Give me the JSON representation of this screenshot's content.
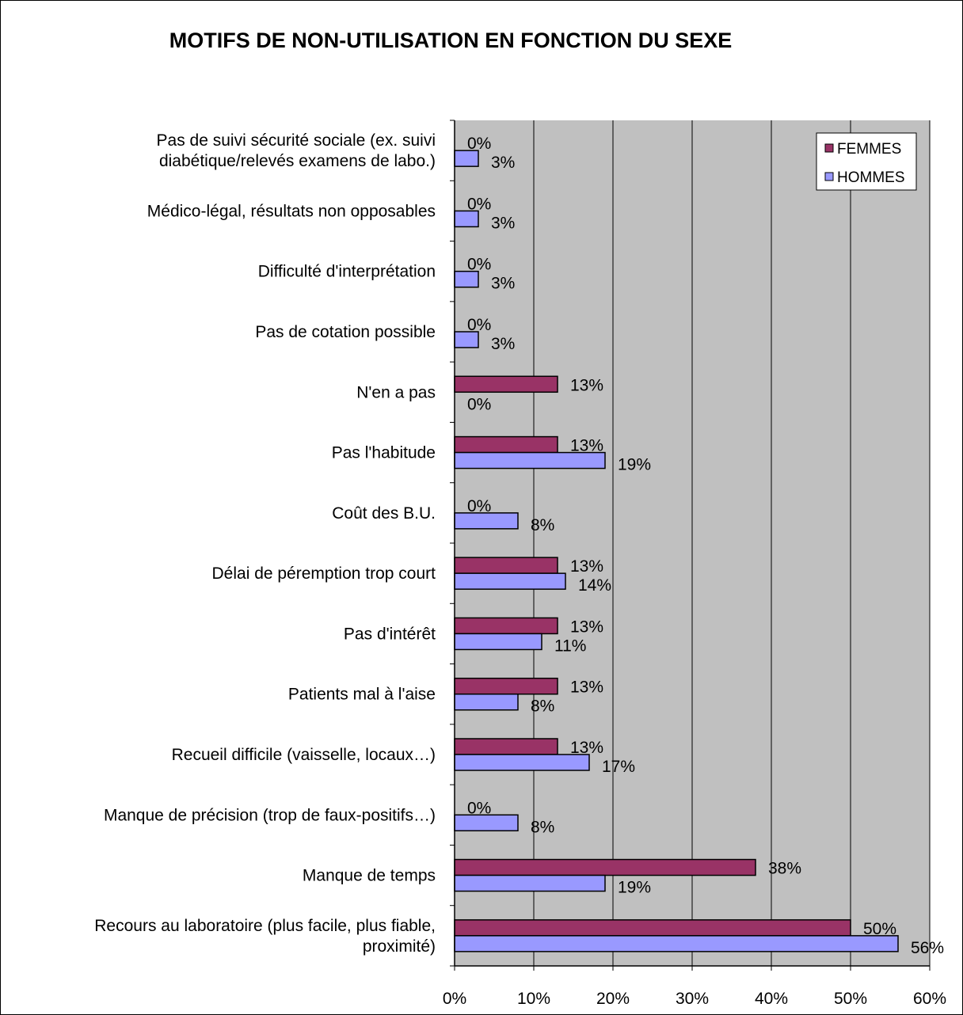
{
  "chart_data": {
    "type": "bar",
    "orientation": "horizontal",
    "title": "MOTIFS DE NON-UTILISATION EN FONCTION DU SEXE",
    "xlabel": "",
    "ylabel": "",
    "xlim": [
      0,
      60
    ],
    "x_ticks": [
      "0%",
      "10%",
      "20%",
      "30%",
      "40%",
      "50%",
      "60%"
    ],
    "grid": true,
    "legend_position": "top-right",
    "value_suffix": "%",
    "categories": [
      [
        "Pas de suivi sécurité sociale (ex. suivi",
        "diabétique/relevés examens de labo.)"
      ],
      [
        "Médico-légal, résultats non opposables"
      ],
      [
        "Difficulté d'interprétation"
      ],
      [
        "Pas de cotation possible"
      ],
      [
        "N'en a pas"
      ],
      [
        "Pas l'habitude"
      ],
      [
        "Coût des B.U."
      ],
      [
        "Délai de péremption trop court"
      ],
      [
        "Pas d'intérêt"
      ],
      [
        "Patients mal à l'aise"
      ],
      [
        "Recueil difficile (vaisselle, locaux…)"
      ],
      [
        "Manque de précision (trop de faux-positifs…)"
      ],
      [
        "Manque de temps"
      ],
      [
        "Recours au laboratoire (plus facile, plus fiable,",
        "proximité)"
      ]
    ],
    "series": [
      {
        "name": "FEMMES",
        "color": "#993366",
        "values": [
          0,
          0,
          0,
          0,
          13,
          13,
          0,
          13,
          13,
          13,
          13,
          0,
          38,
          50
        ]
      },
      {
        "name": "HOMMES",
        "color": "#9999ff",
        "values": [
          3,
          3,
          3,
          3,
          0,
          19,
          8,
          14,
          11,
          8,
          17,
          8,
          19,
          56
        ]
      }
    ],
    "plot_background": "#c0c0c0",
    "grid_color": "#000000"
  }
}
